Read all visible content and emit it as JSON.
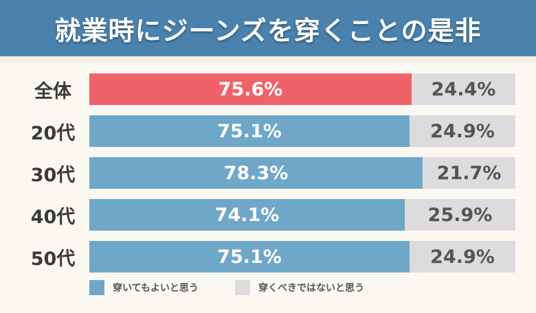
{
  "title": "就業時にジーンズを穿くことの是非",
  "colors": {
    "title_bg": "#4a82ad",
    "highlight": "#f0626a",
    "yes": "#6fa7c8",
    "no": "#dcdcde"
  },
  "chart_data": {
    "type": "bar",
    "orientation": "horizontal",
    "stacked": true,
    "categories": [
      "全体",
      "20代",
      "30代",
      "40代",
      "50代"
    ],
    "series": [
      {
        "name": "穿いてもよいと思う",
        "values": [
          75.6,
          75.1,
          78.3,
          74.1,
          75.1
        ]
      },
      {
        "name": "穿くべきではないと思う",
        "values": [
          24.4,
          24.9,
          21.7,
          25.9,
          24.9
        ]
      }
    ],
    "labels": {
      "yes": [
        "75.6%",
        "75.1%",
        "78.3%",
        "74.1%",
        "75.1%"
      ],
      "no": [
        "24.4%",
        "24.9%",
        "21.7%",
        "25.9%",
        "24.9%"
      ]
    },
    "highlight_category": "全体",
    "xlim": [
      0,
      100
    ],
    "legend_position": "bottom"
  }
}
